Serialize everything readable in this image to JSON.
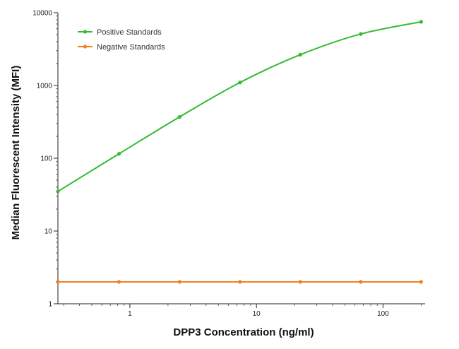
{
  "chart_data": {
    "type": "line",
    "title": "",
    "xlabel": "DPP3 Concentration (ng/ml)",
    "ylabel": "Median  Fluorescent Intensity  (MFI)",
    "x_scale": "log",
    "y_scale": "log",
    "xlim": [
      0.27,
      215
    ],
    "ylim": [
      1,
      10000
    ],
    "x_ticks": [
      1,
      10,
      100
    ],
    "x_tick_labels": [
      "1",
      "10",
      "100"
    ],
    "y_ticks": [
      1,
      10,
      100,
      1000,
      10000
    ],
    "y_tick_labels": [
      "1",
      "10",
      "100",
      "1000",
      "10000"
    ],
    "grid": false,
    "legend_position": "top-left",
    "x": [
      0.27,
      0.82,
      2.47,
      7.41,
      22.2,
      66.7,
      200
    ],
    "series": [
      {
        "name": "Positive Standards",
        "color": "#33bb33",
        "values": [
          35,
          115,
          370,
          1100,
          2650,
          5100,
          7500
        ]
      },
      {
        "name": "Negative Standards",
        "color": "#f08020",
        "values": [
          2,
          2,
          2,
          2,
          2,
          2,
          2
        ]
      }
    ]
  }
}
